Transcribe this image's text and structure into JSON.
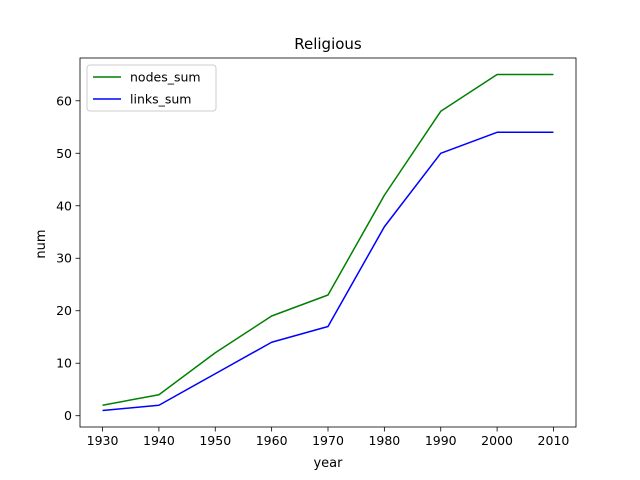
{
  "chart_data": {
    "type": "line",
    "title": "Religious",
    "xlabel": "year",
    "ylabel": "num",
    "x": [
      1930,
      1940,
      1950,
      1960,
      1970,
      1980,
      1990,
      2000,
      2010
    ],
    "xticks": [
      1930,
      1940,
      1950,
      1960,
      1970,
      1980,
      1990,
      2000,
      2010
    ],
    "yticks": [
      0,
      10,
      20,
      30,
      40,
      50,
      60
    ],
    "xlim": [
      1926,
      2014
    ],
    "ylim": [
      -2.15,
      68.15
    ],
    "grid": false,
    "legend_position": "top-left",
    "series": [
      {
        "name": "nodes_sum",
        "color": "#008000",
        "values": [
          2,
          4,
          12,
          19,
          23,
          42,
          58,
          65,
          65
        ]
      },
      {
        "name": "links_sum",
        "color": "#0000ff",
        "values": [
          1,
          2,
          8,
          14,
          17,
          36,
          50,
          54,
          54
        ]
      }
    ]
  }
}
